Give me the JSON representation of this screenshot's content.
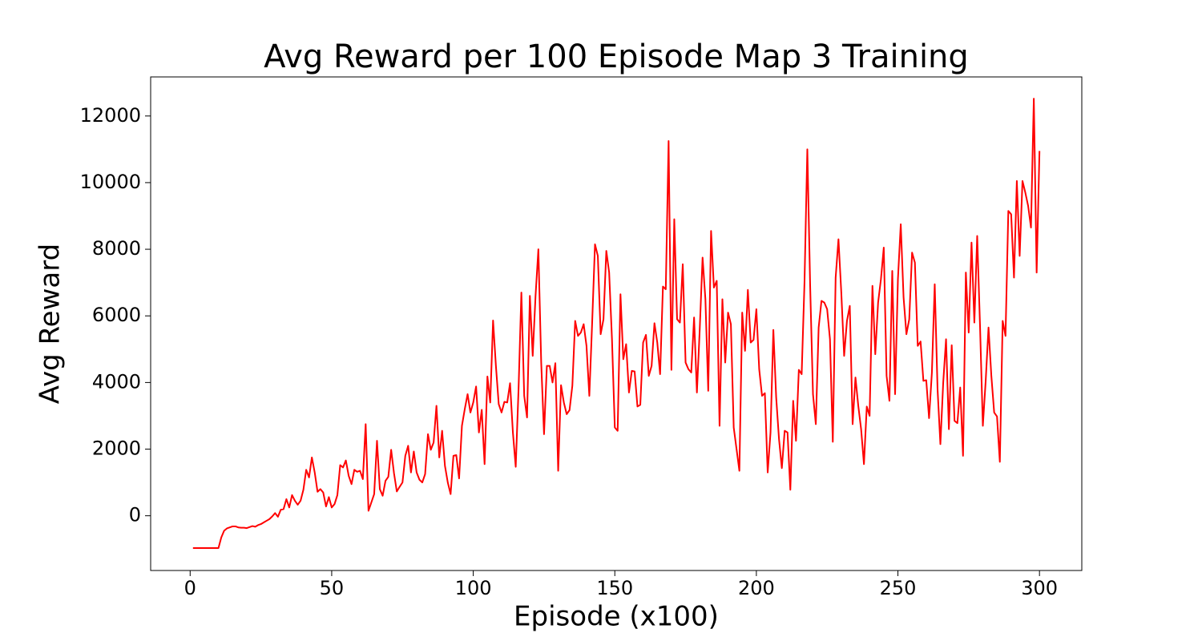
{
  "chart_data": {
    "type": "line",
    "title": "Avg Reward per 100 Episode Map 3 Training",
    "x_label": "Episode (x100)",
    "y_label": "Avg Reward",
    "xlim": [
      -13.95,
      314.95
    ],
    "ylim": [
      -1643,
      13173
    ],
    "xticks": [
      0,
      50,
      100,
      150,
      200,
      250,
      300
    ],
    "yticks": [
      0,
      2000,
      4000,
      6000,
      8000,
      10000,
      12000
    ],
    "x": [
      1,
      2,
      3,
      4,
      5,
      6,
      7,
      8,
      9,
      10,
      11,
      12,
      13,
      14,
      15,
      16,
      17,
      18,
      19,
      20,
      21,
      22,
      23,
      24,
      25,
      26,
      27,
      28,
      29,
      30,
      31,
      32,
      33,
      34,
      35,
      36,
      37,
      38,
      39,
      40,
      41,
      42,
      43,
      44,
      45,
      46,
      47,
      48,
      49,
      50,
      51,
      52,
      53,
      54,
      55,
      56,
      57,
      58,
      59,
      60,
      61,
      62,
      63,
      64,
      65,
      66,
      67,
      68,
      69,
      70,
      71,
      72,
      73,
      74,
      75,
      76,
      77,
      78,
      79,
      80,
      81,
      82,
      83,
      84,
      85,
      86,
      87,
      88,
      89,
      90,
      91,
      92,
      93,
      94,
      95,
      96,
      97,
      98,
      99,
      100,
      101,
      102,
      103,
      104,
      105,
      106,
      107,
      108,
      109,
      110,
      111,
      112,
      113,
      114,
      115,
      116,
      117,
      118,
      119,
      120,
      121,
      122,
      123,
      124,
      125,
      126,
      127,
      128,
      129,
      130,
      131,
      132,
      133,
      134,
      135,
      136,
      137,
      138,
      139,
      140,
      141,
      142,
      143,
      144,
      145,
      146,
      147,
      148,
      149,
      150,
      151,
      152,
      153,
      154,
      155,
      156,
      157,
      158,
      159,
      160,
      161,
      162,
      163,
      164,
      165,
      166,
      167,
      168,
      169,
      170,
      171,
      172,
      173,
      174,
      175,
      176,
      177,
      178,
      179,
      180,
      181,
      182,
      183,
      184,
      185,
      186,
      187,
      188,
      189,
      190,
      191,
      192,
      193,
      194,
      195,
      196,
      197,
      198,
      199,
      200,
      201,
      202,
      203,
      204,
      205,
      206,
      207,
      208,
      209,
      210,
      211,
      212,
      213,
      214,
      215,
      216,
      217,
      218,
      219,
      220,
      221,
      222,
      223,
      224,
      225,
      226,
      227,
      228,
      229,
      230,
      231,
      232,
      233,
      234,
      235,
      236,
      237,
      238,
      239,
      240,
      241,
      242,
      243,
      244,
      245,
      246,
      247,
      248,
      249,
      250,
      251,
      252,
      253,
      254,
      255,
      256,
      257,
      258,
      259,
      260,
      261,
      262,
      263,
      264,
      265,
      266,
      267,
      268,
      269,
      270,
      271,
      272,
      273,
      274,
      275,
      276,
      277,
      278,
      279,
      280,
      281,
      282,
      283,
      284,
      285,
      286,
      287,
      288,
      289,
      290,
      291,
      292,
      293,
      294,
      295,
      296,
      297,
      298,
      299,
      300
    ],
    "series": [
      {
        "color": "#ff0000",
        "values": [
          -970,
          -970,
          -970,
          -970,
          -970,
          -970,
          -970,
          -970,
          -970,
          -970,
          -650,
          -450,
          -380,
          -350,
          -320,
          -320,
          -350,
          -360,
          -360,
          -370,
          -340,
          -310,
          -330,
          -280,
          -250,
          -200,
          -150,
          -100,
          -20,
          80,
          -30,
          180,
          200,
          500,
          250,
          620,
          450,
          330,
          450,
          780,
          1380,
          1150,
          1750,
          1300,
          720,
          800,
          700,
          280,
          560,
          250,
          350,
          620,
          1520,
          1450,
          1660,
          1200,
          950,
          1380,
          1320,
          1350,
          1100,
          2750,
          150,
          400,
          650,
          2250,
          800,
          600,
          1050,
          1170,
          1980,
          1280,
          730,
          870,
          1000,
          1800,
          2100,
          1300,
          1930,
          1300,
          1080,
          1000,
          1250,
          2450,
          1980,
          2200,
          3300,
          1750,
          2550,
          1500,
          1000,
          650,
          1800,
          1820,
          1120,
          2700,
          3200,
          3650,
          3100,
          3400,
          3880,
          2500,
          3180,
          1550,
          4180,
          3400,
          5860,
          4500,
          3350,
          3100,
          3420,
          3400,
          3980,
          2500,
          1470,
          3800,
          6700,
          3600,
          2950,
          6600,
          4800,
          6600,
          8000,
          4600,
          2450,
          4500,
          4500,
          4000,
          4580,
          1350,
          3920,
          3400,
          3050,
          3170,
          3900,
          5850,
          5400,
          5500,
          5750,
          5100,
          3600,
          5800,
          8150,
          7800,
          5450,
          5900,
          7950,
          7300,
          5300,
          2650,
          2550,
          6650,
          4700,
          5150,
          3700,
          4350,
          4330,
          3280,
          3330,
          5200,
          5430,
          4200,
          4500,
          5780,
          5200,
          4250,
          6880,
          6800,
          11250,
          4380,
          8900,
          5900,
          5800,
          7550,
          4600,
          4400,
          4300,
          5950,
          3700,
          5600,
          7750,
          6500,
          3750,
          8550,
          6850,
          7050,
          2700,
          6500,
          4600,
          6100,
          5750,
          2650,
          2000,
          1350,
          6100,
          4950,
          6780,
          5200,
          5280,
          6200,
          4400,
          3600,
          3680,
          1300,
          2500,
          5580,
          3550,
          2300,
          1430,
          2550,
          2500,
          780,
          3450,
          2250,
          4380,
          4250,
          7000,
          11000,
          6900,
          3650,
          2750,
          5650,
          6450,
          6400,
          6200,
          5300,
          2220,
          7150,
          8300,
          6700,
          4800,
          5850,
          6300,
          2750,
          4150,
          3300,
          2600,
          1550,
          3280,
          3000,
          6900,
          4850,
          6400,
          7100,
          8050,
          4200,
          3450,
          7350,
          3650,
          7100,
          8750,
          6550,
          5450,
          5900,
          7900,
          7600,
          5100,
          5230,
          4050,
          4070,
          2930,
          4300,
          6950,
          3800,
          2150,
          4000,
          5300,
          2600,
          5120,
          2850,
          2780,
          3850,
          1800,
          7300,
          5500,
          8200,
          5800,
          8400,
          5700,
          2700,
          4050,
          5650,
          4200,
          3100,
          2980,
          1620,
          5850,
          5400,
          9150,
          9050,
          7150,
          10050,
          7800,
          10050,
          9700,
          9300,
          8650,
          12520,
          7300,
          10950
        ]
      }
    ]
  }
}
